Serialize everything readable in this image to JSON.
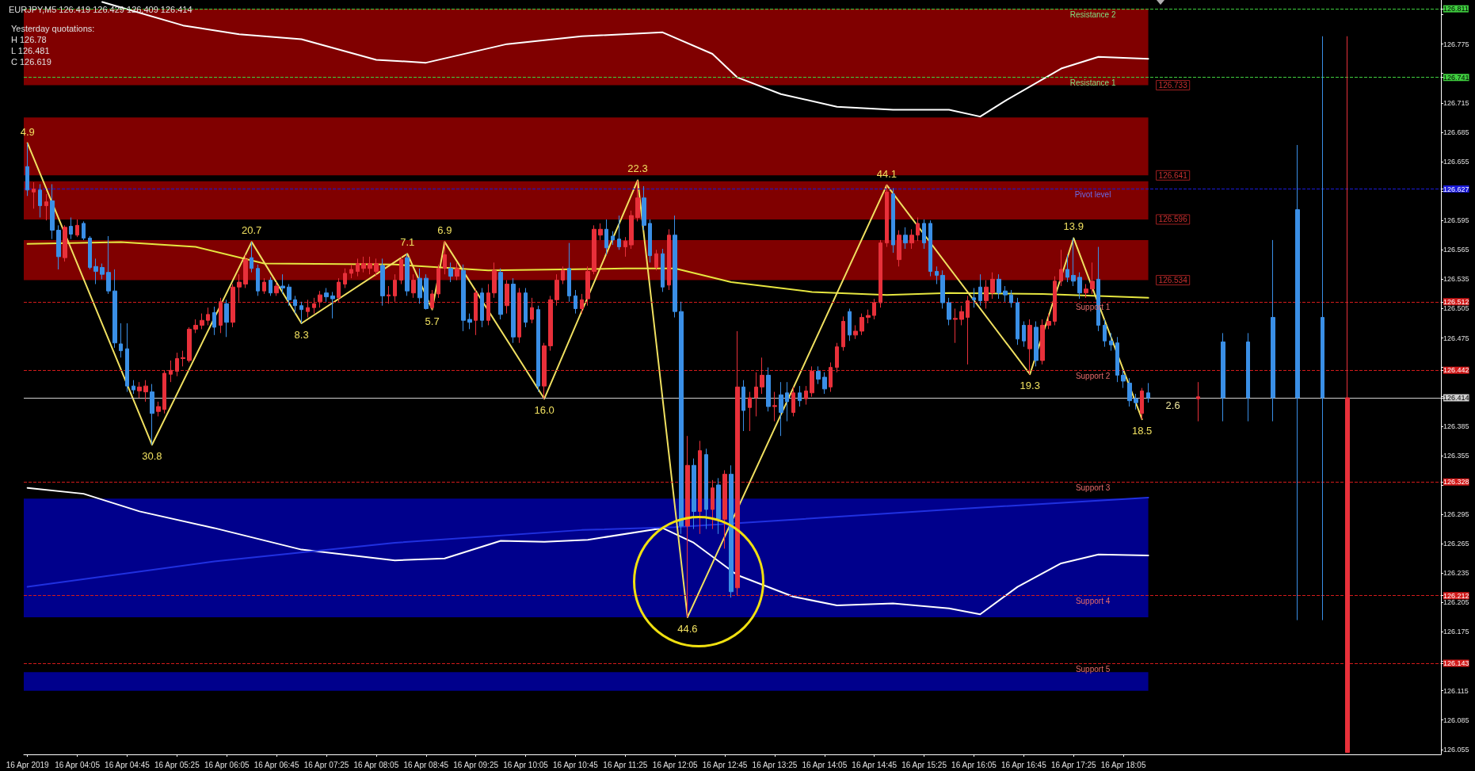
{
  "chart_data": {
    "type": "candlestick",
    "title": "EURJPY,M5 126.419 126.429 126.409 126.414",
    "annotations": [
      "Yesterday quotations:",
      "H 126.78",
      "L 126.481",
      "C 126.619",
      {
        "text": "2.6",
        "x": "2019-04-16T18:25",
        "y": 126.414
      },
      {
        "text": "4.9",
        "x": "2019-04-16T03:25",
        "y": 126.674
      },
      {
        "text": "30.8",
        "x": "2019-04-16T05:05",
        "y": 126.366
      },
      {
        "text": "20.7",
        "x": "2019-04-16T06:25",
        "y": 126.573
      },
      {
        "text": "8.3",
        "x": "2019-04-16T07:05",
        "y": 126.49
      },
      {
        "text": "7.1",
        "x": "2019-04-16T08:30",
        "y": 126.561
      },
      {
        "text": "5.7",
        "x": "2019-04-16T08:50",
        "y": 126.504
      },
      {
        "text": "6.9",
        "x": "2019-04-16T09:00",
        "y": 126.573
      },
      {
        "text": "16.0",
        "x": "2019-04-16T10:20",
        "y": 126.413
      },
      {
        "text": "22.3",
        "x": "2019-04-16T11:35",
        "y": 126.636
      },
      {
        "text": "44.6",
        "x": "2019-04-16T12:15",
        "y": 126.19
      },
      {
        "text": "44.1",
        "x": "2019-04-16T14:55",
        "y": 126.631
      },
      {
        "text": "19.3",
        "x": "2019-04-16T16:50",
        "y": 126.438
      },
      {
        "text": "13.9",
        "x": "2019-04-16T17:25",
        "y": 126.577
      },
      {
        "text": "18.5",
        "x": "2019-04-16T18:20",
        "y": 126.392
      }
    ],
    "xlim": [
      "2019-04-16T03:22",
      "2019-04-16T22:20"
    ],
    "xticks": [
      {
        "value": "2019-04-16T03:25",
        "label": "16 Apr 2019"
      },
      {
        "value": "2019-04-16T04:05",
        "label": "16 Apr 04:05"
      },
      {
        "value": "2019-04-16T04:45",
        "label": "16 Apr 04:45"
      },
      {
        "value": "2019-04-16T05:25",
        "label": "16 Apr 05:25"
      },
      {
        "value": "2019-04-16T06:05",
        "label": "16 Apr 06:05"
      },
      {
        "value": "2019-04-16T06:45",
        "label": "16 Apr 06:45"
      },
      {
        "value": "2019-04-16T07:25",
        "label": "16 Apr 07:25"
      },
      {
        "value": "2019-04-16T08:05",
        "label": "16 Apr 08:05"
      },
      {
        "value": "2019-04-16T08:45",
        "label": "16 Apr 08:45"
      },
      {
        "value": "2019-04-16T09:25",
        "label": "16 Apr 09:25"
      },
      {
        "value": "2019-04-16T10:05",
        "label": "16 Apr 10:05"
      },
      {
        "value": "2019-04-16T10:45",
        "label": "16 Apr 10:45"
      },
      {
        "value": "2019-04-16T11:25",
        "label": "16 Apr 11:25"
      },
      {
        "value": "2019-04-16T12:05",
        "label": "16 Apr 12:05"
      },
      {
        "value": "2019-04-16T12:45",
        "label": "16 Apr 12:45"
      },
      {
        "value": "2019-04-16T13:25",
        "label": "16 Apr 13:25"
      },
      {
        "value": "2019-04-16T14:05",
        "label": "16 Apr 14:05"
      },
      {
        "value": "2019-04-16T14:45",
        "label": "16 Apr 14:45"
      },
      {
        "value": "2019-04-16T15:25",
        "label": "16 Apr 15:25"
      },
      {
        "value": "2019-04-16T16:05",
        "label": "16 Apr 16:05"
      },
      {
        "value": "2019-04-16T16:45",
        "label": "16 Apr 16:45"
      },
      {
        "value": "2019-04-16T17:25",
        "label": "16 Apr 17:25"
      },
      {
        "value": "2019-04-16T18:05",
        "label": "16 Apr 18:05"
      }
    ],
    "ylim": [
      126.05,
      126.82
    ],
    "yticks": [
      {
        "value": 126.811,
        "label": "126.811"
      },
      {
        "value": 126.741,
        "label": "126.741"
      },
      {
        "value": 126.627,
        "label": "126.627"
      },
      {
        "value": 126.512,
        "label": "126.512"
      },
      {
        "value": 126.442,
        "label": "126.442"
      },
      {
        "value": 126.414,
        "label": "126.414"
      },
      {
        "value": 126.328,
        "label": "126.328"
      },
      {
        "value": 126.212,
        "label": "126.212"
      },
      {
        "value": 126.143,
        "label": "126.143"
      },
      {
        "value": 126.805,
        "label": null
      },
      126.775,
      {
        "value": 126.745,
        "label": null
      },
      126.715,
      126.685,
      126.655,
      {
        "value": 126.625,
        "label": null
      },
      126.595,
      126.565,
      126.535,
      126.505,
      126.475,
      {
        "value": 126.445,
        "label": null
      },
      {
        "value": 126.415,
        "label": null
      },
      126.385,
      126.355,
      {
        "value": 126.325,
        "label": null
      },
      126.295,
      126.265,
      126.235,
      126.205,
      126.175,
      {
        "value": 126.145,
        "label": null
      },
      126.115,
      126.085,
      126.055
    ],
    "marker": "none",
    "series": [
      {
        "color": "#e8303a",
        "x": [
          "2019-04-16T03:30",
          "2019-04-16T03:40",
          "2019-04-16T03:55",
          "2019-04-16T04:05",
          "2019-04-16T04:55",
          "2019-04-16T05:00",
          "2019-04-16T05:10",
          "2019-04-16T05:15",
          "2019-04-16T05:20",
          "2019-04-16T05:25",
          "2019-04-16T05:30",
          "2019-04-16T05:35",
          "2019-04-16T05:40",
          "2019-04-16T05:45",
          "2019-04-16T05:50",
          "2019-04-16T06:00",
          "2019-04-16T06:10",
          "2019-04-16T06:15",
          "2019-04-16T06:20",
          "2019-04-16T06:35",
          "2019-04-16T06:45",
          "2019-04-16T07:10",
          "2019-04-16T07:15",
          "2019-04-16T07:20",
          "2019-04-16T07:35",
          "2019-04-16T07:40",
          "2019-04-16T07:45",
          "2019-04-16T07:50",
          "2019-04-16T07:55",
          "2019-04-16T08:00",
          "2019-04-16T08:05",
          "2019-04-16T08:15",
          "2019-04-16T08:20",
          "2019-04-16T08:25",
          "2019-04-16T08:35",
          "2019-04-16T08:50",
          "2019-04-16T08:55",
          "2019-04-16T09:00",
          "2019-04-16T09:10",
          "2019-04-16T09:25",
          "2019-04-16T09:35",
          "2019-04-16T09:40",
          "2019-04-16T09:50",
          "2019-04-16T10:00",
          "2019-04-16T10:10",
          "2019-04-16T10:20",
          "2019-04-16T10:25",
          "2019-04-16T10:30",
          "2019-04-16T10:35",
          "2019-04-16T10:50",
          "2019-04-16T10:55",
          "2019-04-16T11:00",
          "2019-04-16T11:05",
          "2019-04-16T11:25",
          "2019-04-16T11:30",
          "2019-04-16T11:35",
          "2019-04-16T11:50",
          "2019-04-16T12:00",
          "2019-04-16T12:15",
          "2019-04-16T12:25",
          "2019-04-16T12:35",
          "2019-04-16T12:45",
          "2019-04-16T12:55",
          "2019-04-16T13:05",
          "2019-04-16T13:10",
          "2019-04-16T13:15",
          "2019-04-16T13:25",
          "2019-04-16T13:40",
          "2019-04-16T13:50",
          "2019-04-16T13:55",
          "2019-04-16T14:10",
          "2019-04-16T14:15",
          "2019-04-16T14:20",
          "2019-04-16T14:30",
          "2019-04-16T14:35",
          "2019-04-16T14:40",
          "2019-04-16T14:45",
          "2019-04-16T14:50",
          "2019-04-16T14:55",
          "2019-04-16T15:05",
          "2019-04-16T15:15",
          "2019-04-16T15:20",
          "2019-04-16T15:50",
          "2019-04-16T15:55",
          "2019-04-16T16:00",
          "2019-04-16T16:15",
          "2019-04-16T16:20",
          "2019-04-16T16:50",
          "2019-04-16T17:00",
          "2019-04-16T17:05",
          "2019-04-16T17:10",
          "2019-04-16T17:15",
          "2019-04-16T17:35",
          "2019-04-16T17:40",
          "2019-04-16T18:20",
          "2019-04-16T19:05",
          "2019-04-16T21:05"
        ],
        "ohlc": [
          [
            126.624,
            126.634,
            126.607,
            126.627
          ],
          [
            126.61,
            126.622,
            126.595,
            126.614
          ],
          [
            126.557,
            126.59,
            126.553,
            126.588
          ],
          [
            126.58,
            126.596,
            126.578,
            126.59
          ],
          [
            126.421,
            126.43,
            126.414,
            126.425
          ],
          [
            126.42,
            126.432,
            126.41,
            126.426
          ],
          [
            126.4,
            126.41,
            126.395,
            126.405
          ],
          [
            126.402,
            126.442,
            126.398,
            126.439
          ],
          [
            126.438,
            126.452,
            126.43,
            126.442
          ],
          [
            126.441,
            126.46,
            126.436,
            126.454
          ],
          [
            126.454,
            126.462,
            126.446,
            126.455
          ],
          [
            126.452,
            126.486,
            126.45,
            126.484
          ],
          [
            126.484,
            126.494,
            126.48,
            126.488
          ],
          [
            126.488,
            126.5,
            126.484,
            126.493
          ],
          [
            126.493,
            126.506,
            126.488,
            126.499
          ],
          [
            126.488,
            126.516,
            126.48,
            126.512
          ],
          [
            126.491,
            126.53,
            126.486,
            126.527
          ],
          [
            126.527,
            126.54,
            126.512,
            126.532
          ],
          [
            126.53,
            126.56,
            126.526,
            126.555
          ],
          [
            126.523,
            126.536,
            126.52,
            126.532
          ],
          [
            126.521,
            126.532,
            126.518,
            126.528
          ],
          [
            126.502,
            126.514,
            126.496,
            126.506
          ],
          [
            126.506,
            126.516,
            126.5,
            126.51
          ],
          [
            126.512,
            126.523,
            126.506,
            126.519
          ],
          [
            126.516,
            126.536,
            126.512,
            126.532
          ],
          [
            126.53,
            126.546,
            126.526,
            126.541
          ],
          [
            126.541,
            126.55,
            126.536,
            126.545
          ],
          [
            126.543,
            126.556,
            126.538,
            126.551
          ],
          [
            126.546,
            126.558,
            126.542,
            126.551
          ],
          [
            126.546,
            126.558,
            126.54,
            126.551
          ],
          [
            126.543,
            126.556,
            126.538,
            126.551
          ],
          [
            126.518,
            126.528,
            126.51,
            126.519
          ],
          [
            126.518,
            126.54,
            126.512,
            126.534
          ],
          [
            126.534,
            126.558,
            126.53,
            126.555
          ],
          [
            126.521,
            126.54,
            126.516,
            126.534
          ],
          [
            126.506,
            126.524,
            126.504,
            126.52
          ],
          [
            126.52,
            126.55,
            126.516,
            126.546
          ],
          [
            126.546,
            126.573,
            126.54,
            126.56
          ],
          [
            126.538,
            126.552,
            126.534,
            126.546
          ],
          [
            126.493,
            126.525,
            126.478,
            126.521
          ],
          [
            126.493,
            126.53,
            126.488,
            126.521
          ],
          [
            126.521,
            126.552,
            126.516,
            126.544
          ],
          [
            126.508,
            126.534,
            126.5,
            126.53
          ],
          [
            126.476,
            126.526,
            126.47,
            126.521
          ],
          [
            126.494,
            126.516,
            126.49,
            126.506
          ],
          [
            126.426,
            126.47,
            126.413,
            126.467
          ],
          [
            126.467,
            126.518,
            126.462,
            126.514
          ],
          [
            126.514,
            126.54,
            126.508,
            126.534
          ],
          [
            126.534,
            126.548,
            126.53,
            126.544
          ],
          [
            126.505,
            126.52,
            126.5,
            126.514
          ],
          [
            126.515,
            126.548,
            126.508,
            126.543
          ],
          [
            126.543,
            126.59,
            126.54,
            126.586
          ],
          [
            126.58,
            126.592,
            126.575,
            126.586
          ],
          [
            126.568,
            126.578,
            126.558,
            126.574
          ],
          [
            126.57,
            126.605,
            126.566,
            126.6
          ],
          [
            126.598,
            126.636,
            126.594,
            126.618
          ],
          [
            126.547,
            126.565,
            126.544,
            126.561
          ],
          [
            126.529,
            126.586,
            126.524,
            126.58
          ],
          [
            126.283,
            126.375,
            126.19,
            126.345
          ],
          [
            126.298,
            126.37,
            126.275,
            126.36
          ],
          [
            126.3,
            126.33,
            126.28,
            126.322
          ],
          [
            126.29,
            126.34,
            126.26,
            126.336
          ],
          [
            126.22,
            126.482,
            126.212,
            126.425
          ],
          [
            126.404,
            126.42,
            126.38,
            126.414
          ],
          [
            126.414,
            126.44,
            126.395,
            126.425
          ],
          [
            126.425,
            126.455,
            126.418,
            126.437
          ],
          [
            126.405,
            126.42,
            126.39,
            126.406
          ],
          [
            126.399,
            126.425,
            126.395,
            126.419
          ],
          [
            126.413,
            126.426,
            126.407,
            126.421
          ],
          [
            126.419,
            126.446,
            126.415,
            126.441
          ],
          [
            126.425,
            126.45,
            126.42,
            126.445
          ],
          [
            126.445,
            126.47,
            126.44,
            126.466
          ],
          [
            126.466,
            126.497,
            126.462,
            126.492
          ],
          [
            126.478,
            126.488,
            126.474,
            126.482
          ],
          [
            126.482,
            126.5,
            126.478,
            126.496
          ],
          [
            126.496,
            126.504,
            126.49,
            126.498
          ],
          [
            126.498,
            126.515,
            126.494,
            126.511
          ],
          [
            126.511,
            126.575,
            126.506,
            126.572
          ],
          [
            126.572,
            126.631,
            126.568,
            126.624
          ],
          [
            126.555,
            126.585,
            126.548,
            126.58
          ],
          [
            126.572,
            126.586,
            126.566,
            126.58
          ],
          [
            126.58,
            126.598,
            126.574,
            126.592
          ],
          [
            126.494,
            126.505,
            126.47,
            126.495
          ],
          [
            126.494,
            126.508,
            126.488,
            126.502
          ],
          [
            126.496,
            126.518,
            126.448,
            126.513
          ],
          [
            126.513,
            126.534,
            126.505,
            126.527
          ],
          [
            126.521,
            126.542,
            126.515,
            126.535
          ],
          [
            126.464,
            126.494,
            126.438,
            126.488
          ],
          [
            126.452,
            126.494,
            126.448,
            126.488
          ],
          [
            126.488,
            126.5,
            126.484,
            126.492
          ],
          [
            126.492,
            126.538,
            126.488,
            126.533
          ],
          [
            126.533,
            126.565,
            126.528,
            126.545
          ],
          [
            126.521,
            126.53,
            126.516,
            126.525
          ],
          [
            126.525,
            126.552,
            126.52,
            126.533
          ],
          [
            126.398,
            126.424,
            126.392,
            126.421
          ],
          [
            126.413,
            126.43,
            126.39,
            126.415
          ],
          [
            126.052,
            126.783,
            126.052,
            126.414
          ]
        ]
      },
      {
        "color": "#3a8fe6",
        "x": [
          "2019-04-16T03:25",
          "2019-04-16T03:35",
          "2019-04-16T03:45",
          "2019-04-16T03:50",
          "2019-04-16T04:00",
          "2019-04-16T04:10",
          "2019-04-16T04:15",
          "2019-04-16T04:20",
          "2019-04-16T04:25",
          "2019-04-16T04:30",
          "2019-04-16T04:35",
          "2019-04-16T04:40",
          "2019-04-16T04:45",
          "2019-04-16T04:50",
          "2019-04-16T05:05",
          "2019-04-16T05:55",
          "2019-04-16T06:05",
          "2019-04-16T06:25",
          "2019-04-16T06:30",
          "2019-04-16T06:40",
          "2019-04-16T06:50",
          "2019-04-16T06:55",
          "2019-04-16T07:00",
          "2019-04-16T07:05",
          "2019-04-16T07:25",
          "2019-04-16T07:30",
          "2019-04-16T08:10",
          "2019-04-16T08:30",
          "2019-04-16T08:40",
          "2019-04-16T08:45",
          "2019-04-16T09:05",
          "2019-04-16T09:15",
          "2019-04-16T09:20",
          "2019-04-16T09:30",
          "2019-04-16T09:45",
          "2019-04-16T09:55",
          "2019-04-16T10:05",
          "2019-04-16T10:15",
          "2019-04-16T10:40",
          "2019-04-16T10:45",
          "2019-04-16T11:10",
          "2019-04-16T11:15",
          "2019-04-16T11:20",
          "2019-04-16T11:40",
          "2019-04-16T11:45",
          "2019-04-16T11:55",
          "2019-04-16T12:05",
          "2019-04-16T12:10",
          "2019-04-16T12:20",
          "2019-04-16T12:30",
          "2019-04-16T12:40",
          "2019-04-16T12:50",
          "2019-04-16T13:00",
          "2019-04-16T13:20",
          "2019-04-16T13:30",
          "2019-04-16T13:35",
          "2019-04-16T13:45",
          "2019-04-16T14:00",
          "2019-04-16T14:05",
          "2019-04-16T14:25",
          "2019-04-16T15:00",
          "2019-04-16T15:10",
          "2019-04-16T15:25",
          "2019-04-16T15:30",
          "2019-04-16T15:35",
          "2019-04-16T15:40",
          "2019-04-16T15:45",
          "2019-04-16T16:05",
          "2019-04-16T16:10",
          "2019-04-16T16:25",
          "2019-04-16T16:30",
          "2019-04-16T16:35",
          "2019-04-16T16:40",
          "2019-04-16T16:45",
          "2019-04-16T16:55",
          "2019-04-16T17:20",
          "2019-04-16T17:25",
          "2019-04-16T17:30",
          "2019-04-16T17:45",
          "2019-04-16T17:50",
          "2019-04-16T17:55",
          "2019-04-16T18:00",
          "2019-04-16T18:05",
          "2019-04-16T18:10",
          "2019-04-16T18:15",
          "2019-04-16T18:25",
          "2019-04-16T19:25",
          "2019-04-16T19:45",
          "2019-04-16T20:05",
          "2019-04-16T20:25",
          "2019-04-16T20:45"
        ],
        "ohlc": [
          [
            126.65,
            126.674,
            126.62,
            126.626
          ],
          [
            126.626,
            126.632,
            126.598,
            126.61
          ],
          [
            126.615,
            126.632,
            126.576,
            126.585
          ],
          [
            126.585,
            126.59,
            126.545,
            126.558
          ],
          [
            126.589,
            126.598,
            126.576,
            126.581
          ],
          [
            126.592,
            126.594,
            126.575,
            126.577
          ],
          [
            126.577,
            126.579,
            126.545,
            126.547
          ],
          [
            126.548,
            126.556,
            126.53,
            126.543
          ],
          [
            126.547,
            126.551,
            126.535,
            126.54
          ],
          [
            126.542,
            126.579,
            126.52,
            126.523
          ],
          [
            126.523,
            126.545,
            126.465,
            126.47
          ],
          [
            126.469,
            126.49,
            126.455,
            126.462
          ],
          [
            126.464,
            126.49,
            126.42,
            126.426
          ],
          [
            126.426,
            126.432,
            126.418,
            126.422
          ],
          [
            126.42,
            126.428,
            126.366,
            126.398
          ],
          [
            126.501,
            126.507,
            126.478,
            126.486
          ],
          [
            126.51,
            126.514,
            126.476,
            126.491
          ],
          [
            126.557,
            126.573,
            126.542,
            126.546
          ],
          [
            126.546,
            126.55,
            126.518,
            126.523
          ],
          [
            126.534,
            126.537,
            126.518,
            126.521
          ],
          [
            126.528,
            126.54,
            126.52,
            126.526
          ],
          [
            126.527,
            126.53,
            126.508,
            126.514
          ],
          [
            126.514,
            126.518,
            126.5,
            126.508
          ],
          [
            126.508,
            126.512,
            126.49,
            126.504
          ],
          [
            126.521,
            126.526,
            126.512,
            126.517
          ],
          [
            126.518,
            126.522,
            126.495,
            126.515
          ],
          [
            126.549,
            126.556,
            126.508,
            126.518
          ],
          [
            126.557,
            126.561,
            126.518,
            126.523
          ],
          [
            126.536,
            126.546,
            126.51,
            126.516
          ],
          [
            126.536,
            126.54,
            126.504,
            126.505
          ],
          [
            126.546,
            126.552,
            126.532,
            126.538
          ],
          [
            126.544,
            126.55,
            126.482,
            126.493
          ],
          [
            126.494,
            126.5,
            126.484,
            126.491
          ],
          [
            126.521,
            126.526,
            126.486,
            126.493
          ],
          [
            126.542,
            126.546,
            126.494,
            126.499
          ],
          [
            126.53,
            126.536,
            126.47,
            126.476
          ],
          [
            126.521,
            126.526,
            126.486,
            126.491
          ],
          [
            126.504,
            126.508,
            126.42,
            126.426
          ],
          [
            126.546,
            126.572,
            126.512,
            126.518
          ],
          [
            126.518,
            126.524,
            126.5,
            126.505
          ],
          [
            126.586,
            126.596,
            126.56,
            126.567
          ],
          [
            126.579,
            126.584,
            126.57,
            126.575
          ],
          [
            126.576,
            126.6,
            126.565,
            126.568
          ],
          [
            126.618,
            126.63,
            126.585,
            126.59
          ],
          [
            126.592,
            126.596,
            126.552,
            126.559
          ],
          [
            126.561,
            126.566,
            126.522,
            126.527
          ],
          [
            126.58,
            126.6,
            126.496,
            126.502
          ],
          [
            126.502,
            126.512,
            126.275,
            126.283
          ],
          [
            126.345,
            126.352,
            126.28,
            126.298
          ],
          [
            126.356,
            126.362,
            126.28,
            126.3
          ],
          [
            126.325,
            126.332,
            126.275,
            126.29
          ],
          [
            126.336,
            126.345,
            126.21,
            126.216
          ],
          [
            126.425,
            126.432,
            126.38,
            126.401
          ],
          [
            126.437,
            126.445,
            126.4,
            126.405
          ],
          [
            126.417,
            126.43,
            126.375,
            126.399
          ],
          [
            126.419,
            126.43,
            126.39,
            126.41
          ],
          [
            126.419,
            126.426,
            126.405,
            126.411
          ],
          [
            126.441,
            126.446,
            126.428,
            126.433
          ],
          [
            126.435,
            126.44,
            126.418,
            126.423
          ],
          [
            126.502,
            126.505,
            126.472,
            126.478
          ],
          [
            126.622,
            126.628,
            126.562,
            126.57
          ],
          [
            126.58,
            126.588,
            126.566,
            126.572
          ],
          [
            126.592,
            126.596,
            126.566,
            126.572
          ],
          [
            126.592,
            126.595,
            126.538,
            126.543
          ],
          [
            126.543,
            126.548,
            126.53,
            126.539
          ],
          [
            126.539,
            126.544,
            126.505,
            126.511
          ],
          [
            126.511,
            126.516,
            126.488,
            126.494
          ],
          [
            126.516,
            126.526,
            126.506,
            126.514
          ],
          [
            126.527,
            126.54,
            126.508,
            126.513
          ],
          [
            126.535,
            126.54,
            126.515,
            126.521
          ],
          [
            126.523,
            126.528,
            126.512,
            126.519
          ],
          [
            126.519,
            126.524,
            126.506,
            126.511
          ],
          [
            126.511,
            126.516,
            126.468,
            126.474
          ],
          [
            126.488,
            126.492,
            126.466,
            126.472
          ],
          [
            126.486,
            126.492,
            126.446,
            126.452
          ],
          [
            126.545,
            126.56,
            126.532,
            126.537
          ],
          [
            126.539,
            126.577,
            126.528,
            126.533
          ],
          [
            126.537,
            126.542,
            126.515,
            126.521
          ],
          [
            126.535,
            126.568,
            126.482,
            126.488
          ],
          [
            126.488,
            126.494,
            126.466,
            126.472
          ],
          [
            126.472,
            126.48,
            126.462,
            126.468
          ],
          [
            126.47,
            126.476,
            126.43,
            126.437
          ],
          [
            126.437,
            126.442,
            126.424,
            126.431
          ],
          [
            126.429,
            126.434,
            126.405,
            126.411
          ],
          [
            126.413,
            126.418,
            126.402,
            126.409
          ],
          [
            126.419,
            126.429,
            126.409,
            126.414
          ],
          [
            126.471,
            126.48,
            126.39,
            126.414
          ],
          [
            126.471,
            126.48,
            126.39,
            126.414
          ],
          [
            126.496,
            126.575,
            126.39,
            126.414
          ],
          [
            126.606,
            126.672,
            126.187,
            126.414
          ],
          [
            126.496,
            126.783,
            126.187,
            126.414
          ]
        ]
      },
      {
        "type": "line",
        "color": "#e6e640",
        "x": [
          "2019-04-16T03:25",
          "2019-04-16T04:40",
          "2019-04-16T05:40",
          "2019-04-16T06:35",
          "2019-04-16T08:20",
          "2019-04-16T09:35",
          "2019-04-16T11:25",
          "2019-04-16T12:05",
          "2019-04-16T12:50",
          "2019-04-16T13:55",
          "2019-04-16T14:55",
          "2019-04-16T15:45",
          "2019-04-16T17:00",
          "2019-04-16T17:45",
          "2019-04-16T18:25"
        ],
        "values": [
          126.571,
          126.573,
          126.568,
          126.551,
          126.55,
          126.544,
          126.546,
          126.546,
          126.532,
          126.522,
          126.519,
          126.521,
          126.52,
          126.518,
          126.516
        ]
      },
      {
        "type": "line",
        "color": "#ffffff",
        "x": [
          "2019-04-16T04:25",
          "2019-04-16T05:30",
          "2019-04-16T06:15",
          "2019-04-16T07:05",
          "2019-04-16T08:05",
          "2019-04-16T08:45",
          "2019-04-16T09:50",
          "2019-04-16T10:50",
          "2019-04-16T11:55",
          "2019-04-16T12:35",
          "2019-04-16T12:55",
          "2019-04-16T13:30",
          "2019-04-16T14:15",
          "2019-04-16T15:00",
          "2019-04-16T15:45",
          "2019-04-16T16:10",
          "2019-04-16T16:30",
          "2019-04-16T17:15",
          "2019-04-16T17:45",
          "2019-04-16T18:25"
        ],
        "values": [
          126.818,
          126.794,
          126.785,
          126.78,
          126.759,
          126.756,
          126.775,
          126.783,
          126.787,
          126.765,
          126.741,
          126.724,
          126.711,
          126.708,
          126.708,
          126.701,
          126.717,
          126.75,
          126.762,
          126.76
        ]
      },
      {
        "type": "line",
        "color": "#ffffff",
        "x": [
          "2019-04-16T03:25",
          "2019-04-16T04:10",
          "2019-04-16T04:55",
          "2019-04-16T05:55",
          "2019-04-16T07:05",
          "2019-04-16T08:20",
          "2019-04-16T09:00",
          "2019-04-16T09:45",
          "2019-04-16T10:20",
          "2019-04-16T10:55",
          "2019-04-16T11:55",
          "2019-04-16T12:20",
          "2019-04-16T12:55",
          "2019-04-16T13:40",
          "2019-04-16T14:15",
          "2019-04-16T15:00",
          "2019-04-16T15:45",
          "2019-04-16T16:10",
          "2019-04-16T16:40",
          "2019-04-16T17:15",
          "2019-04-16T17:45",
          "2019-04-16T18:25"
        ],
        "values": [
          126.322,
          126.316,
          126.298,
          126.281,
          126.259,
          126.248,
          126.25,
          126.268,
          126.267,
          126.269,
          126.281,
          126.266,
          126.233,
          126.211,
          126.202,
          126.204,
          126.199,
          126.193,
          126.221,
          126.245,
          126.254,
          126.253
        ]
      },
      {
        "type": "line",
        "color": "#2030e0",
        "x": [
          "2019-04-16T03:25",
          "2019-04-16T05:55",
          "2019-04-16T08:20",
          "2019-04-16T10:50",
          "2019-04-16T12:05",
          "2019-04-16T13:20",
          "2019-04-16T15:45",
          "2019-04-16T18:25"
        ],
        "values": [
          126.221,
          126.247,
          126.266,
          126.279,
          126.282,
          126.288,
          126.3,
          126.312
        ]
      },
      {
        "type": "line",
        "color": "#f0e060",
        "x": [
          "2019-04-16T03:25",
          "2019-04-16T05:05",
          "2019-04-16T06:25",
          "2019-04-16T07:05",
          "2019-04-16T08:30",
          "2019-04-16T08:50",
          "2019-04-16T09:00",
          "2019-04-16T10:20",
          "2019-04-16T11:35",
          "2019-04-16T12:15",
          "2019-04-16T14:55",
          "2019-04-16T16:50",
          "2019-04-16T17:25",
          "2019-04-16T18:20"
        ],
        "values": [
          126.674,
          126.366,
          126.573,
          126.49,
          126.561,
          126.504,
          126.573,
          126.413,
          126.636,
          126.19,
          126.631,
          126.438,
          126.577,
          126.392
        ]
      }
    ],
    "bands": [
      {
        "axis": "y",
        "from": 126.733,
        "to": 126.811,
        "color": "#800000",
        "label": "126.733"
      },
      {
        "axis": "y",
        "from": 126.641,
        "to": 126.7,
        "color": "#800000",
        "label": "126.641"
      },
      {
        "axis": "y",
        "from": 126.596,
        "to": 126.635,
        "color": "#800000",
        "label": "126.596"
      },
      {
        "axis": "y",
        "from": 126.534,
        "to": 126.575,
        "color": "#800000",
        "label": "126.534"
      },
      {
        "axis": "y",
        "from": 126.19,
        "to": 126.311,
        "color": "#00008c"
      },
      {
        "axis": "y",
        "from": 126.115,
        "to": 126.134,
        "color": "#00008c"
      }
    ],
    "ref_lines": [
      {
        "axis": "y",
        "value": 126.811,
        "label": "Resistance 2",
        "color": "#3fcf3f",
        "line_style": "dashed"
      },
      {
        "axis": "y",
        "value": 126.741,
        "label": "Resistance 1",
        "color": "#3fcf3f",
        "line_style": "dashed"
      },
      {
        "axis": "y",
        "value": 126.627,
        "label": "Pivot level",
        "color": "#1a1ad8",
        "line_style": "dashed"
      },
      {
        "axis": "y",
        "value": 126.512,
        "label": "Support 1",
        "color": "#d21a1a",
        "line_style": "dashed"
      },
      {
        "axis": "y",
        "value": 126.442,
        "label": "Support 2",
        "color": "#d21a1a",
        "line_style": "dashed"
      },
      {
        "axis": "y",
        "value": 126.414,
        "label": null,
        "color": "#d0d0d0",
        "line_style": "solid"
      },
      {
        "axis": "y",
        "value": 126.328,
        "label": "Support 3",
        "color": "#d21a1a",
        "line_style": "dashed"
      },
      {
        "axis": "y",
        "value": 126.212,
        "label": "Support 4",
        "color": "#d21a1a",
        "line_style": "dashed"
      },
      {
        "axis": "y",
        "value": 126.143,
        "label": "Support 5",
        "color": "#d21a1a",
        "line_style": "dashed"
      }
    ]
  }
}
